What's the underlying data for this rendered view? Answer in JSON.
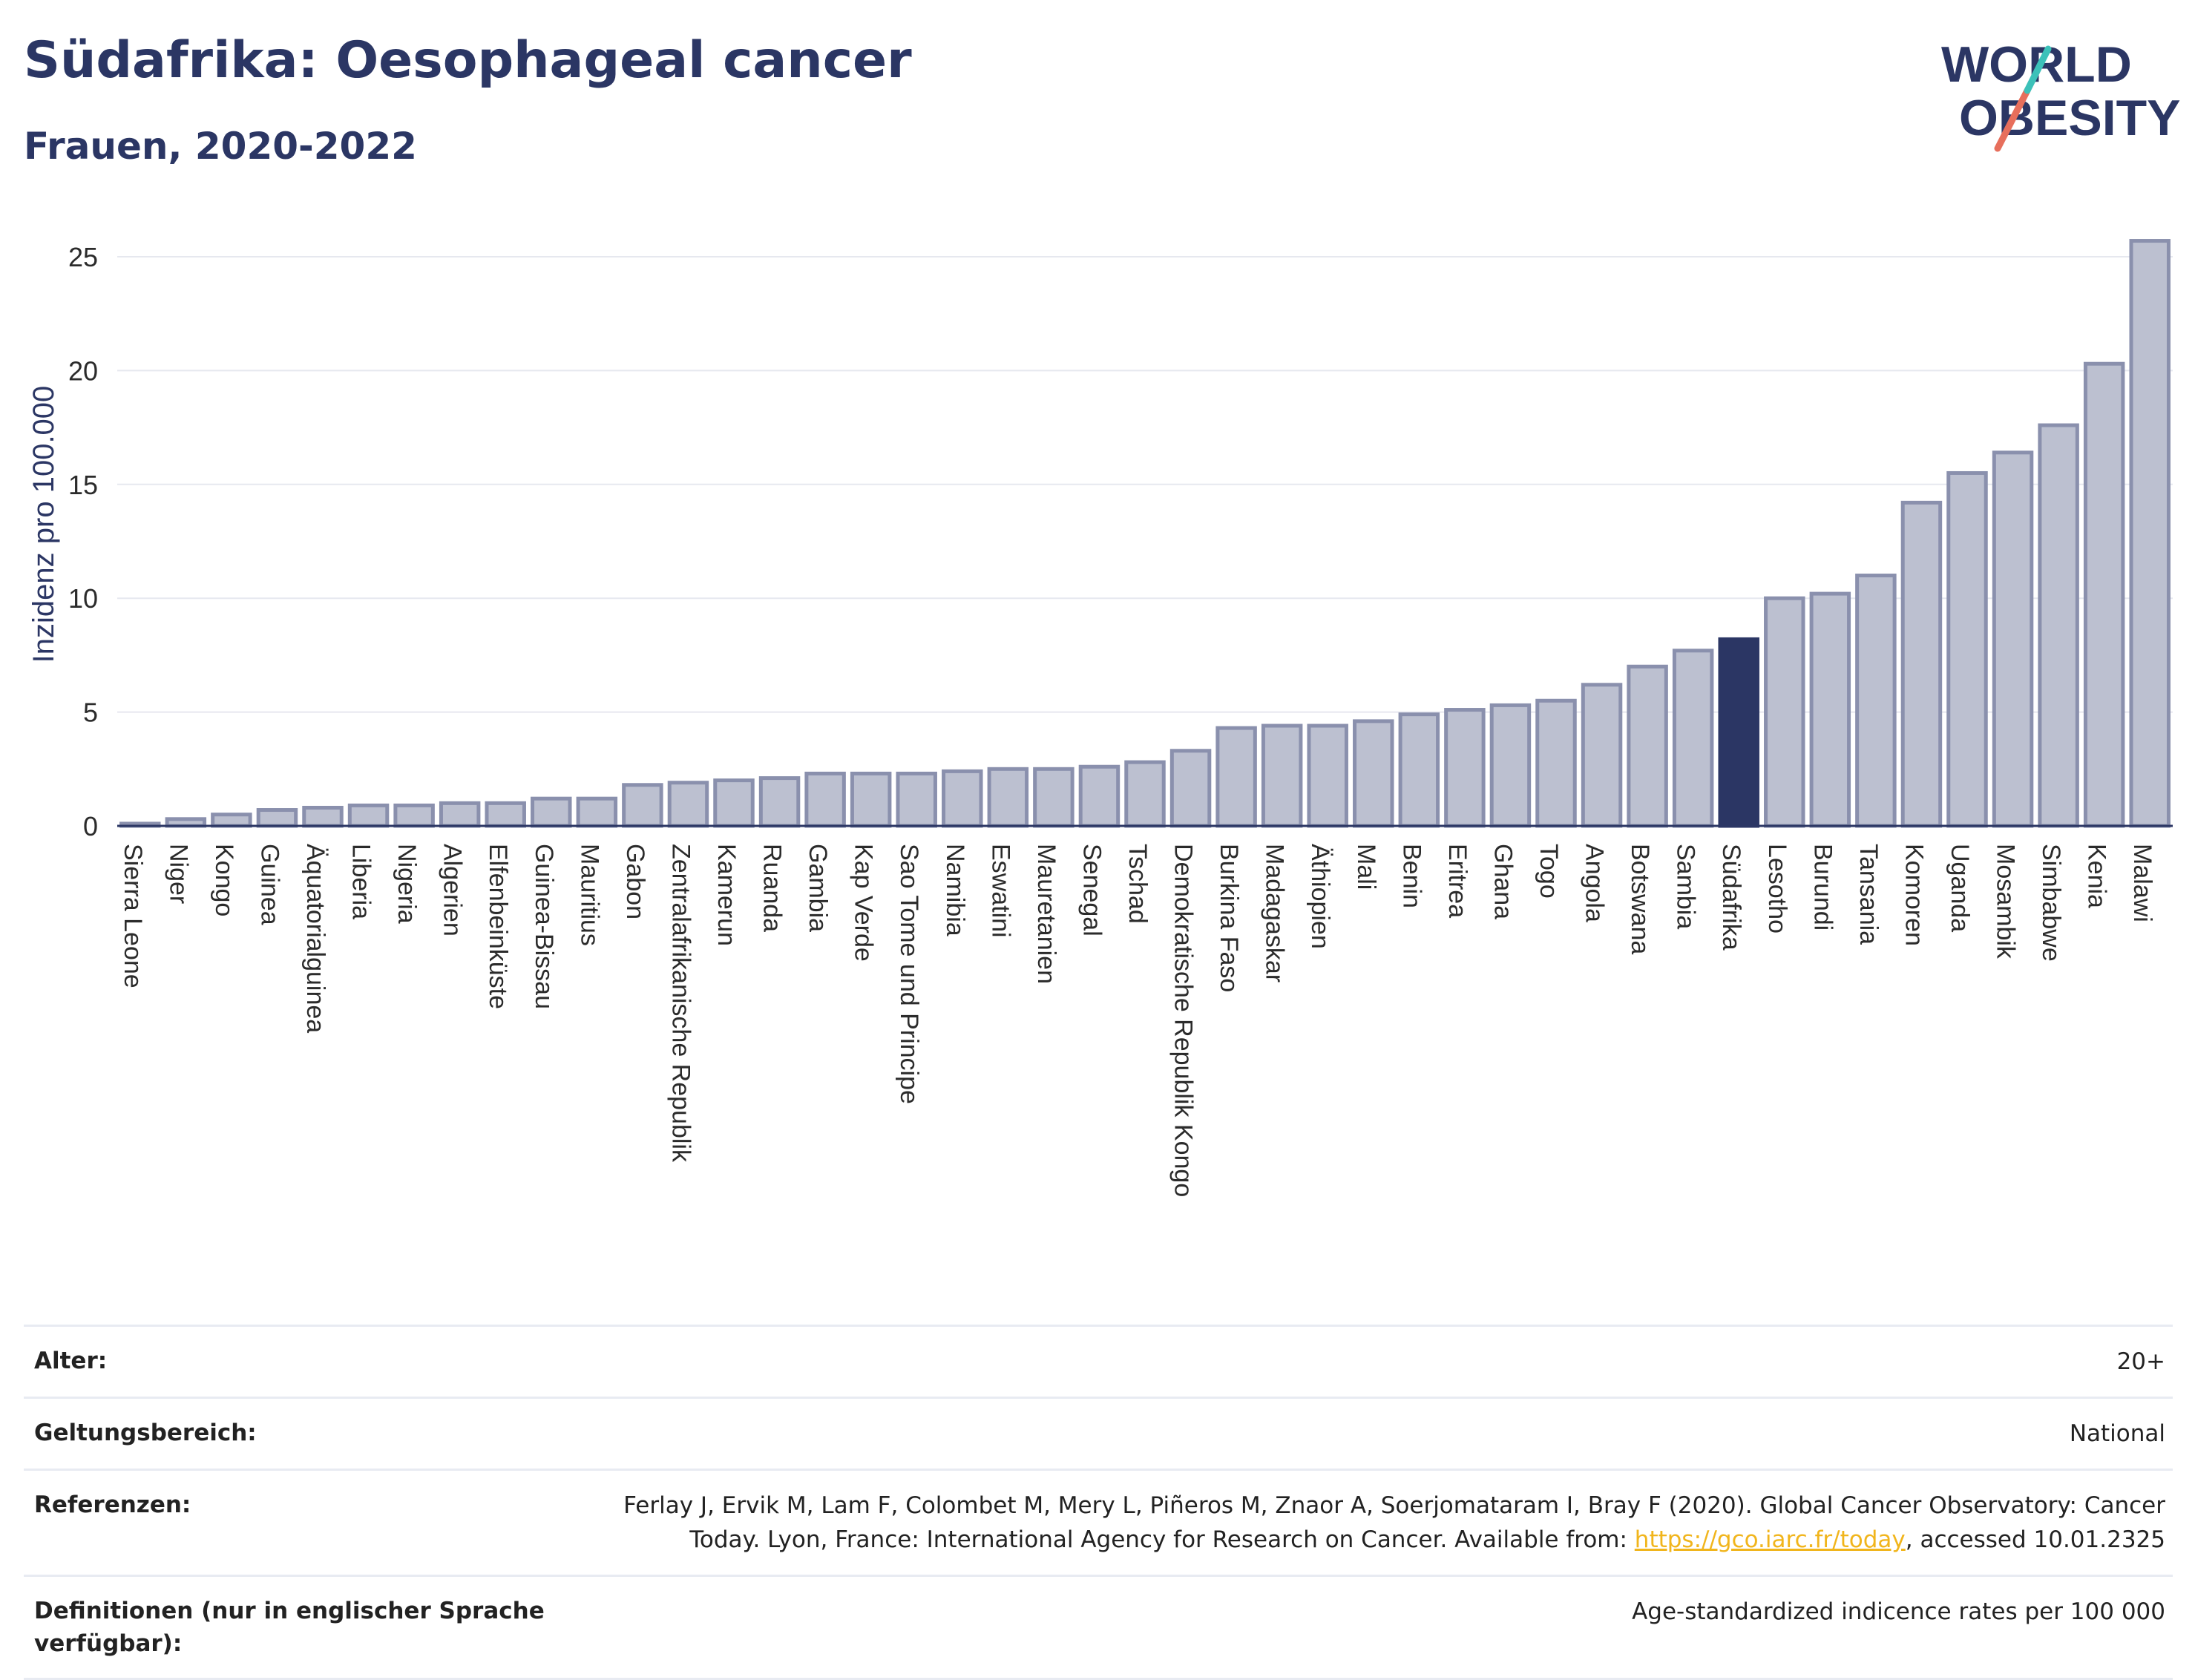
{
  "header": {
    "title": "Südafrika: Oesophageal cancer",
    "subtitle": "Frauen, 2020-2022"
  },
  "logo": {
    "line1": "WORLD",
    "line2": "OBESITY"
  },
  "colors": {
    "bar": "#bcc0d0",
    "bar_stroke": "#8a90ad",
    "highlight": "#2b3664",
    "title": "#2b3664"
  },
  "chart_data": {
    "type": "bar",
    "ylabel": "Inzidenz pro 100.000",
    "ylim": [
      0,
      26.5
    ],
    "yticks": [
      0,
      5,
      10,
      15,
      20,
      25
    ],
    "highlight": "Südafrika",
    "categories": [
      "Sierra Leone",
      "Niger",
      "Kongo",
      "Guinea",
      "Äquatorialguinea",
      "Liberia",
      "Nigeria",
      "Algerien",
      "Elfenbeinküste",
      "Guinea-Bissau",
      "Mauritius",
      "Gabon",
      "Zentralafrikanische Republik",
      "Kamerun",
      "Ruanda",
      "Gambia",
      "Kap Verde",
      "Sao Tome und Principe",
      "Namibia",
      "Eswatini",
      "Mauretanien",
      "Senegal",
      "Tschad",
      "Demokratische Republik Kongo",
      "Burkina Faso",
      "Madagaskar",
      "Äthiopien",
      "Mali",
      "Benin",
      "Eritrea",
      "Ghana",
      "Togo",
      "Angola",
      "Botswana",
      "Sambia",
      "Südafrika",
      "Lesotho",
      "Burundi",
      "Tansania",
      "Komoren",
      "Uganda",
      "Mosambik",
      "Simbabwe",
      "Kenia",
      "Malawi"
    ],
    "values": [
      0.1,
      0.3,
      0.5,
      0.7,
      0.8,
      0.9,
      0.9,
      1.0,
      1.0,
      1.2,
      1.2,
      1.8,
      1.9,
      2.0,
      2.1,
      2.3,
      2.3,
      2.3,
      2.4,
      2.5,
      2.5,
      2.6,
      2.8,
      3.3,
      4.3,
      4.4,
      4.4,
      4.6,
      4.9,
      5.1,
      5.3,
      5.5,
      6.2,
      7.0,
      7.7,
      8.2,
      10.0,
      10.2,
      11.0,
      14.2,
      15.5,
      16.4,
      17.6,
      20.3,
      25.7
    ]
  },
  "meta": [
    {
      "key": "Alter:",
      "value": "20+"
    },
    {
      "key": "Geltungsbereich:",
      "value": "National"
    },
    {
      "key": "Referenzen:",
      "value_line1": "Ferlay J, Ervik M, Lam F, Colombet M, Mery L, Piñeros M, Znaor A, Soerjomataram I, Bray F (2020). Global Cancer Observatory: Cancer",
      "value_line2_pre": "Today. Lyon, France: International Agency for Research on Cancer. Available from: ",
      "link": "https://gco.iarc.fr/today",
      "value_line2_post": ", accessed 10.01.2325"
    },
    {
      "key_line1": "Definitionen (nur in englischer Sprache",
      "key_line2": "verfügbar):",
      "value": "Age-standardized indicence rates per 100 000"
    }
  ]
}
